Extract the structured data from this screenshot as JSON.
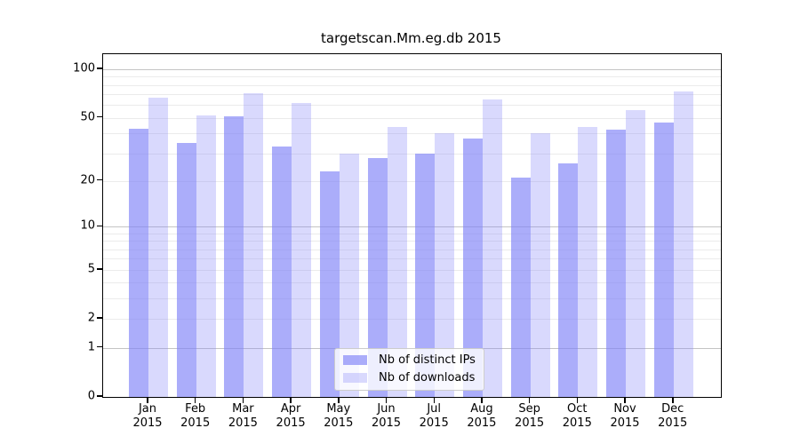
{
  "title": "targetscan.Mm.eg.db 2015",
  "chart_data": {
    "type": "bar",
    "title": "targetscan.Mm.eg.db 2015",
    "categories": [
      "Jan",
      "Feb",
      "Mar",
      "Apr",
      "May",
      "Jun",
      "Jul",
      "Aug",
      "Sep",
      "Oct",
      "Nov",
      "Dec"
    ],
    "category_year": "2015",
    "series": [
      {
        "name": "Nb of distinct IPs",
        "color": "rgba(128,130,247,0.66)",
        "values": [
          43,
          35,
          51,
          33,
          23,
          28,
          30,
          37,
          21,
          26,
          42,
          47
        ]
      },
      {
        "name": "Nb of downloads",
        "color": "rgba(128,130,247,0.30)",
        "values": [
          67,
          52,
          71,
          62,
          30,
          44,
          40,
          65,
          40,
          44,
          56,
          73
        ]
      }
    ],
    "yscale": "log1p",
    "ylim": [
      0,
      124
    ],
    "yticks": [
      0,
      1,
      2,
      5,
      10,
      20,
      50,
      100
    ],
    "minor_gridlines": [
      3,
      4,
      6,
      7,
      8,
      9,
      30,
      40,
      60,
      70,
      80,
      90
    ],
    "grid": true,
    "legend_position": "lower center",
    "colors": {
      "bar_base": "#8082f7",
      "major_gridline": "#c4c4c4",
      "minor_gridline": "#ebebeb",
      "axis": "#000000",
      "background": "#ffffff"
    }
  }
}
